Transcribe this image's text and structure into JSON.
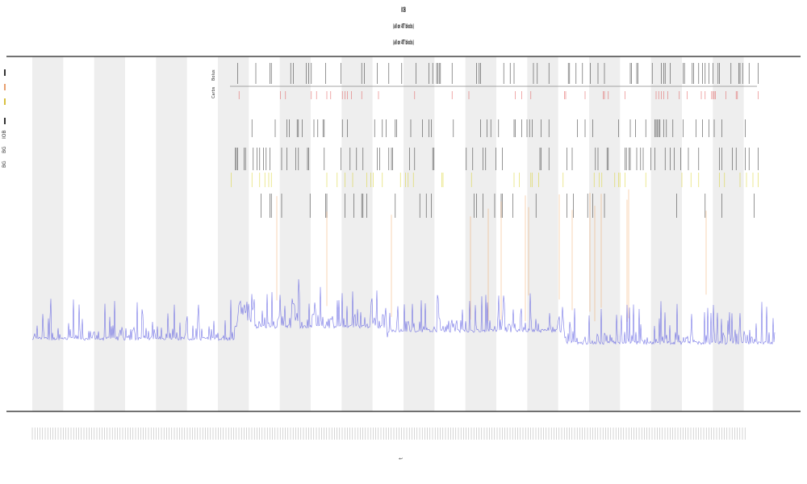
{
  "header": {
    "title": "IOB",
    "subtitle1": "(all on 4f7 blocks)",
    "subtitle2": "(all on 4f7 blocks)"
  },
  "legend": {
    "items": [
      {
        "label": "IOB",
        "color": "#333333"
      },
      {
        "label": "BG",
        "color": "#e8a070"
      },
      {
        "label": "BG",
        "color": "#d8c040"
      },
      {
        "label": "",
        "color": "#333333"
      }
    ]
  },
  "row_labels": [
    "Bolus",
    "Carbs"
  ],
  "xlabel": "t",
  "colors": {
    "band": "#eeeeee",
    "trace": "#4a4adf",
    "tick_red": "#e05050",
    "tick_black": "#222222",
    "tick_yellow": "#d8d020",
    "tick_orange": "#f09040",
    "axis": "#444444"
  },
  "chart_data": {
    "type": "line",
    "title": "IOB",
    "xlabel": "t",
    "ylabel": "",
    "grid": false,
    "legend_position": "top-left",
    "bands": 12,
    "series": [
      {
        "name": "IOB",
        "description_level": "low baseline with spikes"
      }
    ]
  }
}
